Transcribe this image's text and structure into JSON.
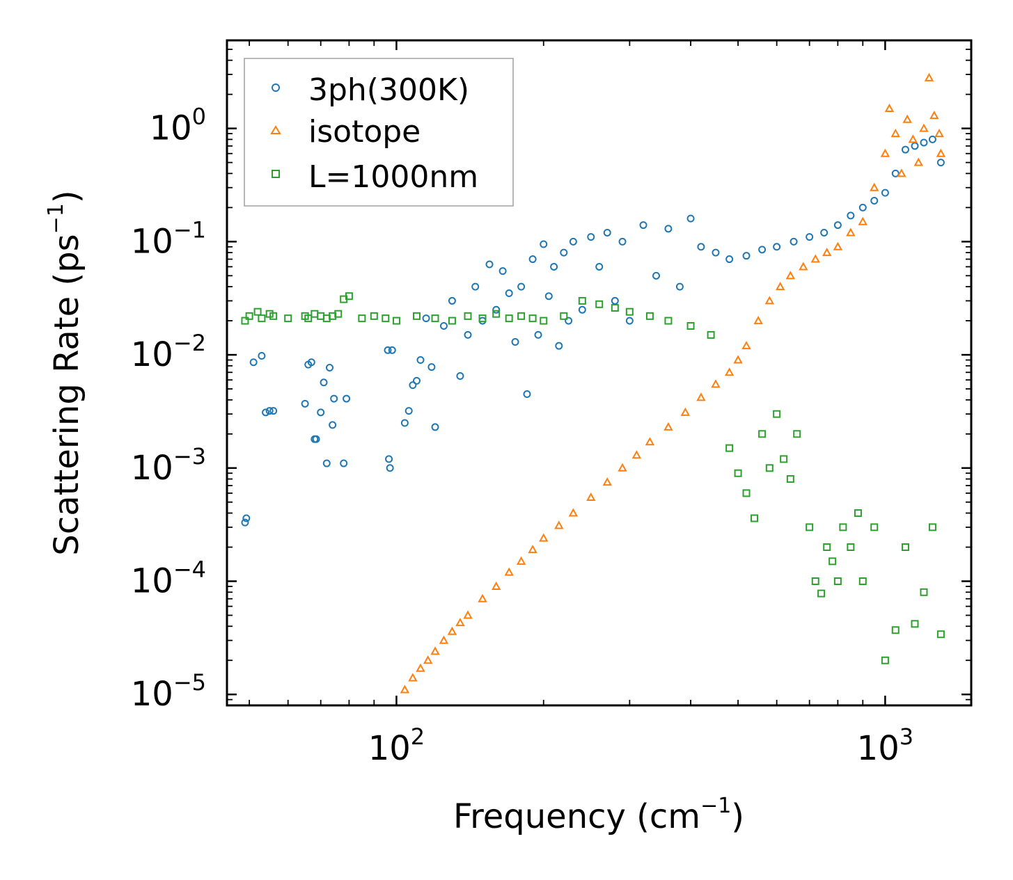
{
  "chart_data": {
    "type": "scatter",
    "title": "",
    "xlabel": "Frequency (cm",
    "xlabel_sup": "−1",
    "xlabel_end": ")",
    "ylabel": "Scattering Rate (ps",
    "ylabel_sup": "−1",
    "ylabel_end": ")",
    "xscale": "log",
    "yscale": "log",
    "xlim": [
      45,
      1500
    ],
    "ylim": [
      8e-06,
      6
    ],
    "grid": false,
    "legend_position": "top-left",
    "x_ticks": [
      {
        "value": 100,
        "base": "10",
        "exp": "2"
      },
      {
        "value": 1000,
        "base": "10",
        "exp": "3"
      }
    ],
    "y_ticks": [
      {
        "value": 1,
        "base": "10",
        "exp": "0"
      },
      {
        "value": 0.1,
        "base": "10",
        "exp": "−1"
      },
      {
        "value": 0.01,
        "base": "10",
        "exp": "−2"
      },
      {
        "value": 0.001,
        "base": "10",
        "exp": "−3"
      },
      {
        "value": 0.0001,
        "base": "10",
        "exp": "−4"
      },
      {
        "value": 1e-05,
        "base": "10",
        "exp": "−5"
      }
    ],
    "series": [
      {
        "name": "3ph(300K)",
        "marker": "circle",
        "color": "#1f77b4",
        "x": [
          49,
          49.3,
          51,
          53,
          54,
          55,
          56,
          65,
          66,
          67,
          68,
          68.5,
          70,
          71,
          72,
          73,
          74,
          74.5,
          78,
          79,
          96,
          96.5,
          97,
          98,
          104,
          106,
          108,
          110,
          112,
          115,
          118,
          120,
          125,
          130,
          135,
          140,
          145,
          150,
          155,
          160,
          165,
          170,
          175,
          180,
          185,
          190,
          195,
          200,
          205,
          210,
          215,
          220,
          225,
          230,
          240,
          250,
          260,
          270,
          280,
          290,
          300,
          320,
          340,
          360,
          380,
          400,
          420,
          450,
          480,
          520,
          560,
          600,
          650,
          700,
          750,
          800,
          850,
          900,
          950,
          1000,
          1050,
          1100,
          1150,
          1200,
          1250,
          1300
        ],
        "y": [
          0.00033,
          0.00036,
          0.0086,
          0.0098,
          0.0031,
          0.0032,
          0.0032,
          0.0037,
          0.0082,
          0.0086,
          0.0018,
          0.0018,
          0.0031,
          0.0057,
          0.0011,
          0.0077,
          0.0024,
          0.0041,
          0.0011,
          0.0041,
          0.011,
          0.0012,
          0.001,
          0.011,
          0.0025,
          0.0032,
          0.0054,
          0.0059,
          0.009,
          0.021,
          0.0078,
          0.0023,
          0.018,
          0.03,
          0.0065,
          0.015,
          0.04,
          0.02,
          0.063,
          0.025,
          0.055,
          0.035,
          0.013,
          0.04,
          0.0045,
          0.07,
          0.015,
          0.095,
          0.033,
          0.06,
          0.012,
          0.08,
          0.02,
          0.1,
          0.025,
          0.11,
          0.06,
          0.12,
          0.03,
          0.1,
          0.02,
          0.14,
          0.05,
          0.13,
          0.04,
          0.16,
          0.09,
          0.08,
          0.07,
          0.075,
          0.085,
          0.09,
          0.1,
          0.11,
          0.12,
          0.14,
          0.17,
          0.2,
          0.23,
          0.27,
          0.4,
          0.65,
          0.7,
          0.75,
          0.8,
          0.5
        ]
      },
      {
        "name": "isotope",
        "marker": "triangle",
        "color": "#ff7f0e",
        "x": [
          104,
          108,
          112,
          116,
          120,
          125,
          130,
          135,
          140,
          150,
          160,
          170,
          180,
          190,
          200,
          215,
          230,
          250,
          270,
          290,
          310,
          330,
          360,
          390,
          420,
          450,
          480,
          500,
          520,
          550,
          580,
          610,
          640,
          680,
          720,
          760,
          800,
          850,
          900,
          950,
          1000,
          1020,
          1050,
          1080,
          1110,
          1140,
          1170,
          1200,
          1230,
          1260,
          1290,
          1300
        ],
        "y": [
          1.1e-05,
          1.4e-05,
          1.7e-05,
          2e-05,
          2.4e-05,
          3e-05,
          3.6e-05,
          4.3e-05,
          5e-05,
          7e-05,
          9e-05,
          0.00012,
          0.00015,
          0.00019,
          0.00024,
          0.00031,
          0.0004,
          0.00055,
          0.00075,
          0.001,
          0.0013,
          0.0017,
          0.0023,
          0.0031,
          0.0042,
          0.0055,
          0.007,
          0.009,
          0.012,
          0.02,
          0.03,
          0.04,
          0.05,
          0.06,
          0.07,
          0.08,
          0.09,
          0.12,
          0.15,
          0.3,
          0.6,
          1.5,
          0.9,
          0.4,
          1.2,
          0.8,
          0.5,
          1.0,
          2.8,
          1.3,
          0.9,
          0.6
        ]
      },
      {
        "name": "L=1000nm",
        "marker": "square",
        "color": "#2ca02c",
        "x": [
          49,
          50,
          52,
          53,
          55,
          56,
          60,
          65,
          66,
          68,
          70,
          72,
          74,
          76,
          78,
          80,
          85,
          90,
          95,
          100,
          110,
          120,
          130,
          140,
          150,
          160,
          170,
          180,
          190,
          200,
          220,
          240,
          260,
          280,
          300,
          330,
          360,
          400,
          440,
          480,
          500,
          520,
          540,
          560,
          580,
          600,
          620,
          640,
          660,
          700,
          720,
          740,
          760,
          780,
          800,
          820,
          850,
          880,
          900,
          950,
          1000,
          1050,
          1100,
          1150,
          1200,
          1250,
          1300
        ],
        "y": [
          0.02,
          0.022,
          0.024,
          0.021,
          0.023,
          0.022,
          0.021,
          0.022,
          0.021,
          0.023,
          0.022,
          0.021,
          0.022,
          0.023,
          0.031,
          0.033,
          0.021,
          0.022,
          0.021,
          0.02,
          0.022,
          0.021,
          0.02,
          0.022,
          0.021,
          0.023,
          0.021,
          0.022,
          0.021,
          0.02,
          0.022,
          0.03,
          0.028,
          0.026,
          0.024,
          0.022,
          0.02,
          0.018,
          0.015,
          0.0015,
          0.0009,
          0.0006,
          0.00036,
          0.002,
          0.001,
          0.003,
          0.0012,
          0.0008,
          0.002,
          0.0003,
          0.0001,
          7.8e-05,
          0.0002,
          0.00015,
          0.0001,
          0.0003,
          0.0002,
          0.0004,
          0.0001,
          0.0003,
          2e-05,
          3.7e-05,
          0.0002,
          4.2e-05,
          8e-05,
          0.0003,
          3.4e-05
        ]
      }
    ]
  }
}
